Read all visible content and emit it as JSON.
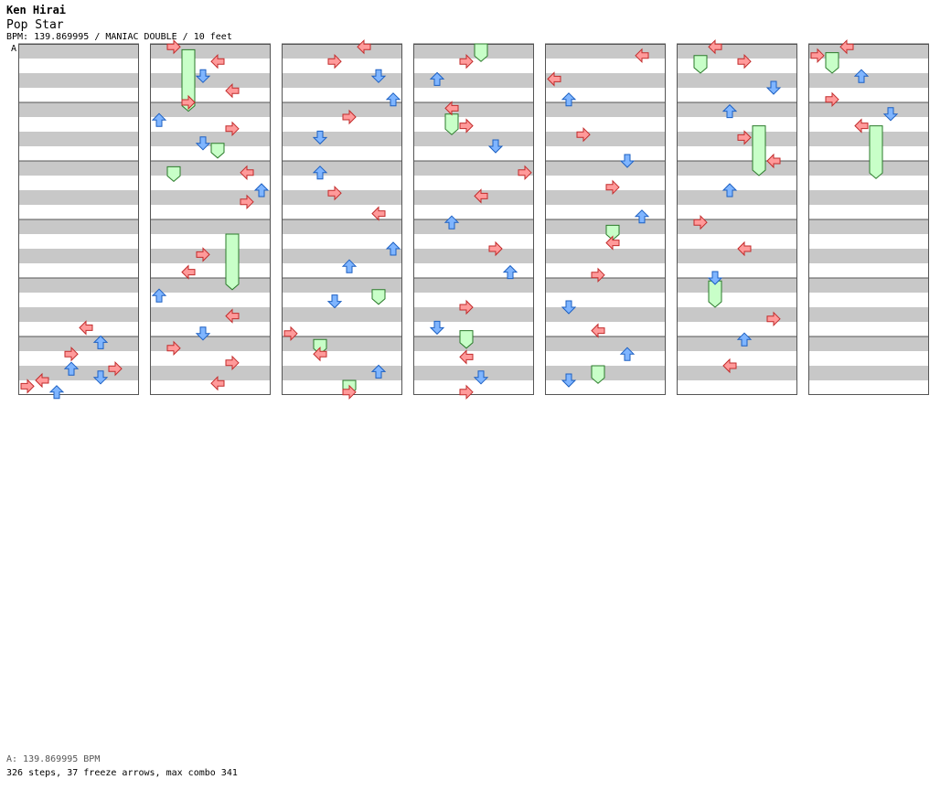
{
  "header": {
    "artist": "Ken Hirai",
    "title": "Pop Star",
    "meta": "BPM: 139.869995 / MANIAC DOUBLE / 10 feet",
    "section_marker": "A"
  },
  "footer": {
    "bpm_line": "A: 139.869995 BPM",
    "stats_line": "326 steps, 37 freeze arrows, max combo 341"
  },
  "colors": {
    "stripe_gray": "#c8c8c8",
    "left_arrow": "#ff9a9a",
    "right_arrow": "#ff9a9a",
    "up_arrow": "#7fb5ff",
    "down_arrow": "#7fb5ff",
    "freeze": "#c8ffc8"
  },
  "chart": {
    "columns": 7,
    "measures_per_column": 6,
    "lanes": 8,
    "notes": [
      {
        "c": 0,
        "m": 4.85,
        "lane": 4,
        "d": "L"
      },
      {
        "c": 0,
        "m": 5.1,
        "lane": 5,
        "d": "U"
      },
      {
        "c": 0,
        "m": 5.3,
        "lane": 3,
        "d": "R"
      },
      {
        "c": 0,
        "m": 5.55,
        "lane": 3,
        "d": "U"
      },
      {
        "c": 0,
        "m": 5.55,
        "lane": 6,
        "d": "R"
      },
      {
        "c": 0,
        "m": 5.7,
        "lane": 5,
        "d": "D"
      },
      {
        "c": 0,
        "m": 5.75,
        "lane": 1,
        "d": "L"
      },
      {
        "c": 0,
        "m": 5.85,
        "lane": 0,
        "d": "R"
      },
      {
        "c": 0,
        "m": 5.95,
        "lane": 2,
        "d": "U"
      },
      {
        "c": 1,
        "m": 0.05,
        "lane": 1,
        "d": "R"
      },
      {
        "c": 1,
        "m": 0.3,
        "lane": 4,
        "d": "L"
      },
      {
        "c": 1,
        "m": 0.55,
        "lane": 3,
        "d": "D"
      },
      {
        "c": 1,
        "m": 0.8,
        "lane": 5,
        "d": "L"
      },
      {
        "c": 1,
        "m": 1.0,
        "lane": 2,
        "d": "R"
      },
      {
        "c": 1,
        "m": 1.3,
        "lane": 0,
        "d": "U"
      },
      {
        "c": 1,
        "m": 1.45,
        "lane": 5,
        "d": "R"
      },
      {
        "c": 1,
        "m": 1.7,
        "lane": 3,
        "d": "D"
      },
      {
        "c": 1,
        "m": 2.2,
        "lane": 6,
        "d": "L"
      },
      {
        "c": 1,
        "m": 2.5,
        "lane": 7,
        "d": "U"
      },
      {
        "c": 1,
        "m": 2.7,
        "lane": 6,
        "d": "R"
      },
      {
        "c": 1,
        "m": 3.6,
        "lane": 3,
        "d": "R"
      },
      {
        "c": 1,
        "m": 3.9,
        "lane": 2,
        "d": "L"
      },
      {
        "c": 1,
        "m": 4.3,
        "lane": 0,
        "d": "U"
      },
      {
        "c": 1,
        "m": 4.65,
        "lane": 5,
        "d": "L"
      },
      {
        "c": 1,
        "m": 4.95,
        "lane": 3,
        "d": "D"
      },
      {
        "c": 1,
        "m": 5.2,
        "lane": 1,
        "d": "R"
      },
      {
        "c": 1,
        "m": 5.45,
        "lane": 5,
        "d": "R"
      },
      {
        "c": 1,
        "m": 5.8,
        "lane": 4,
        "d": "L"
      },
      {
        "c": 2,
        "m": 0.05,
        "lane": 5,
        "d": "L"
      },
      {
        "c": 2,
        "m": 0.3,
        "lane": 3,
        "d": "R"
      },
      {
        "c": 2,
        "m": 0.55,
        "lane": 6,
        "d": "D"
      },
      {
        "c": 2,
        "m": 0.95,
        "lane": 7,
        "d": "U"
      },
      {
        "c": 2,
        "m": 1.25,
        "lane": 4,
        "d": "R"
      },
      {
        "c": 2,
        "m": 1.6,
        "lane": 2,
        "d": "D"
      },
      {
        "c": 2,
        "m": 2.2,
        "lane": 2,
        "d": "U"
      },
      {
        "c": 2,
        "m": 2.55,
        "lane": 3,
        "d": "R"
      },
      {
        "c": 2,
        "m": 2.9,
        "lane": 6,
        "d": "L"
      },
      {
        "c": 2,
        "m": 3.5,
        "lane": 7,
        "d": "U"
      },
      {
        "c": 2,
        "m": 3.8,
        "lane": 4,
        "d": "U"
      },
      {
        "c": 2,
        "m": 4.4,
        "lane": 3,
        "d": "D"
      },
      {
        "c": 2,
        "m": 4.95,
        "lane": 0,
        "d": "R"
      },
      {
        "c": 2,
        "m": 5.3,
        "lane": 2,
        "d": "L"
      },
      {
        "c": 2,
        "m": 5.6,
        "lane": 6,
        "d": "U"
      },
      {
        "c": 2,
        "m": 5.95,
        "lane": 4,
        "d": "R"
      },
      {
        "c": 3,
        "m": 0.3,
        "lane": 3,
        "d": "R"
      },
      {
        "c": 3,
        "m": 0.6,
        "lane": 1,
        "d": "U"
      },
      {
        "c": 3,
        "m": 1.1,
        "lane": 2,
        "d": "L"
      },
      {
        "c": 3,
        "m": 1.4,
        "lane": 3,
        "d": "R"
      },
      {
        "c": 3,
        "m": 1.75,
        "lane": 5,
        "d": "D"
      },
      {
        "c": 3,
        "m": 2.2,
        "lane": 7,
        "d": "R"
      },
      {
        "c": 3,
        "m": 2.6,
        "lane": 4,
        "d": "L"
      },
      {
        "c": 3,
        "m": 3.05,
        "lane": 2,
        "d": "U"
      },
      {
        "c": 3,
        "m": 3.5,
        "lane": 5,
        "d": "R"
      },
      {
        "c": 3,
        "m": 3.9,
        "lane": 6,
        "d": "U"
      },
      {
        "c": 3,
        "m": 4.5,
        "lane": 3,
        "d": "R"
      },
      {
        "c": 3,
        "m": 4.85,
        "lane": 1,
        "d": "D"
      },
      {
        "c": 3,
        "m": 5.35,
        "lane": 3,
        "d": "L"
      },
      {
        "c": 3,
        "m": 5.7,
        "lane": 4,
        "d": "D"
      },
      {
        "c": 3,
        "m": 5.95,
        "lane": 3,
        "d": "R"
      },
      {
        "c": 4,
        "m": 0.2,
        "lane": 6,
        "d": "L"
      },
      {
        "c": 4,
        "m": 0.6,
        "lane": 0,
        "d": "L"
      },
      {
        "c": 4,
        "m": 0.95,
        "lane": 1,
        "d": "U"
      },
      {
        "c": 4,
        "m": 1.55,
        "lane": 2,
        "d": "R"
      },
      {
        "c": 4,
        "m": 2.0,
        "lane": 5,
        "d": "D"
      },
      {
        "c": 4,
        "m": 2.45,
        "lane": 4,
        "d": "R"
      },
      {
        "c": 4,
        "m": 2.95,
        "lane": 6,
        "d": "U"
      },
      {
        "c": 4,
        "m": 3.4,
        "lane": 4,
        "d": "L"
      },
      {
        "c": 4,
        "m": 3.95,
        "lane": 3,
        "d": "R"
      },
      {
        "c": 4,
        "m": 4.5,
        "lane": 1,
        "d": "D"
      },
      {
        "c": 4,
        "m": 4.9,
        "lane": 3,
        "d": "L"
      },
      {
        "c": 4,
        "m": 5.3,
        "lane": 5,
        "d": "U"
      },
      {
        "c": 4,
        "m": 5.75,
        "lane": 1,
        "d": "D"
      },
      {
        "c": 5,
        "m": 0.05,
        "lane": 2,
        "d": "L"
      },
      {
        "c": 5,
        "m": 0.3,
        "lane": 4,
        "d": "R"
      },
      {
        "c": 5,
        "m": 0.75,
        "lane": 6,
        "d": "D"
      },
      {
        "c": 5,
        "m": 1.15,
        "lane": 3,
        "d": "U"
      },
      {
        "c": 5,
        "m": 1.6,
        "lane": 4,
        "d": "R"
      },
      {
        "c": 5,
        "m": 2.0,
        "lane": 6,
        "d": "L"
      },
      {
        "c": 5,
        "m": 2.5,
        "lane": 3,
        "d": "U"
      },
      {
        "c": 5,
        "m": 3.05,
        "lane": 1,
        "d": "R"
      },
      {
        "c": 5,
        "m": 3.5,
        "lane": 4,
        "d": "L"
      },
      {
        "c": 5,
        "m": 4.0,
        "lane": 2,
        "d": "D"
      },
      {
        "c": 5,
        "m": 4.7,
        "lane": 6,
        "d": "R"
      },
      {
        "c": 5,
        "m": 5.05,
        "lane": 4,
        "d": "U"
      },
      {
        "c": 5,
        "m": 5.5,
        "lane": 3,
        "d": "L"
      },
      {
        "c": 6,
        "m": 0.05,
        "lane": 2,
        "d": "L"
      },
      {
        "c": 6,
        "m": 0.2,
        "lane": 0,
        "d": "R"
      },
      {
        "c": 6,
        "m": 0.55,
        "lane": 3,
        "d": "U"
      },
      {
        "c": 6,
        "m": 0.95,
        "lane": 1,
        "d": "R"
      },
      {
        "c": 6,
        "m": 1.2,
        "lane": 5,
        "d": "D"
      },
      {
        "c": 6,
        "m": 1.4,
        "lane": 3,
        "d": "L"
      }
    ],
    "freezes": [
      {
        "c": 1,
        "m0": 0.1,
        "m1": 1.15,
        "lane": 2
      },
      {
        "c": 1,
        "m0": 1.7,
        "m1": 1.95,
        "lane": 4
      },
      {
        "c": 1,
        "m0": 2.1,
        "m1": 2.35,
        "lane": 1
      },
      {
        "c": 1,
        "m0": 3.25,
        "m1": 4.2,
        "lane": 5
      },
      {
        "c": 2,
        "m0": 4.2,
        "m1": 4.45,
        "lane": 6
      },
      {
        "c": 2,
        "m0": 5.05,
        "m1": 5.3,
        "lane": 2
      },
      {
        "c": 2,
        "m0": 5.75,
        "m1": 6.0,
        "lane": 4
      },
      {
        "c": 3,
        "m0": 0.0,
        "m1": 0.3,
        "lane": 4
      },
      {
        "c": 3,
        "m0": 1.2,
        "m1": 1.55,
        "lane": 2
      },
      {
        "c": 3,
        "m0": 4.9,
        "m1": 5.2,
        "lane": 3
      },
      {
        "c": 4,
        "m0": 3.1,
        "m1": 3.35,
        "lane": 4
      },
      {
        "c": 4,
        "m0": 5.5,
        "m1": 5.8,
        "lane": 3
      },
      {
        "c": 5,
        "m0": 0.2,
        "m1": 0.5,
        "lane": 1
      },
      {
        "c": 5,
        "m0": 1.4,
        "m1": 2.25,
        "lane": 5
      },
      {
        "c": 5,
        "m0": 4.05,
        "m1": 4.5,
        "lane": 2
      },
      {
        "c": 6,
        "m0": 0.15,
        "m1": 0.5,
        "lane": 1
      },
      {
        "c": 6,
        "m0": 1.4,
        "m1": 2.3,
        "lane": 4
      }
    ]
  }
}
